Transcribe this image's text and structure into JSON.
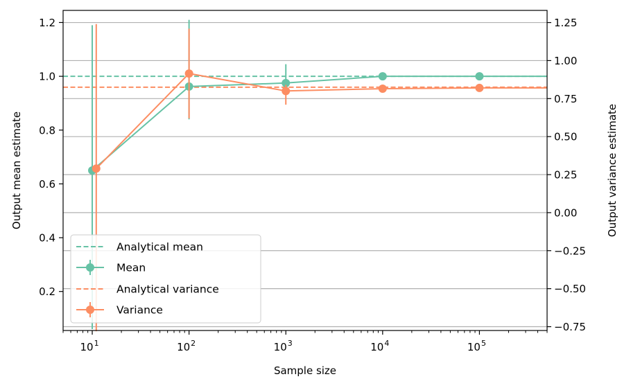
{
  "chart_data": {
    "type": "line",
    "xlabel": "Sample size",
    "ylabel_left": "Output mean estimate",
    "ylabel_right": "Output variance estimate",
    "x_scale": "log",
    "xlim": [
      5,
      500000
    ],
    "ylim_left": [
      0.055,
      1.245
    ],
    "ylim_right": [
      -0.775,
      1.33
    ],
    "x_ticks": [
      {
        "value": 10,
        "base": "10",
        "exp": "1"
      },
      {
        "value": 100,
        "base": "10",
        "exp": "2"
      },
      {
        "value": 1000,
        "base": "10",
        "exp": "3"
      },
      {
        "value": 10000,
        "base": "10",
        "exp": "4"
      },
      {
        "value": 100000,
        "base": "10",
        "exp": "5"
      }
    ],
    "y_ticks_left": [
      {
        "value": 0.2,
        "label": "0.2"
      },
      {
        "value": 0.4,
        "label": "0.4"
      },
      {
        "value": 0.6,
        "label": "0.6"
      },
      {
        "value": 0.8,
        "label": "0.8"
      },
      {
        "value": 1.0,
        "label": "1.0"
      },
      {
        "value": 1.2,
        "label": "1.2"
      }
    ],
    "y_ticks_right": [
      {
        "value": -0.75,
        "label": "−0.75"
      },
      {
        "value": -0.5,
        "label": "−0.50"
      },
      {
        "value": -0.25,
        "label": "−0.25"
      },
      {
        "value": 0.0,
        "label": "0.00"
      },
      {
        "value": 0.25,
        "label": "0.25"
      },
      {
        "value": 0.5,
        "label": "0.50"
      },
      {
        "value": 0.75,
        "label": "0.75"
      },
      {
        "value": 1.0,
        "label": "1.00"
      },
      {
        "value": 1.25,
        "label": "1.25"
      }
    ],
    "grid": "horizontal (right axis ticks)",
    "legend_position": "lower-left",
    "colors": {
      "mean": "#66c2a5",
      "variance": "#fc8d62"
    },
    "series": [
      {
        "name": "Mean",
        "axis": "left",
        "x": [
          10,
          100,
          1000,
          10000,
          100000,
          500000
        ],
        "y": [
          0.65,
          0.962,
          0.975,
          1.0,
          1.0,
          1.0
        ],
        "y_err_low": [
          0.06,
          0.84,
          0.98,
          null,
          null,
          null
        ],
        "y_err_high": [
          1.19,
          1.21,
          1.045,
          null,
          null,
          null
        ]
      },
      {
        "name": "Variance",
        "axis": "right",
        "x": [
          11,
          100,
          1000,
          10000,
          100000,
          500000
        ],
        "y": [
          0.29,
          0.915,
          0.8,
          0.815,
          0.82,
          0.82
        ],
        "y_err_low": [
          -0.78,
          0.62,
          0.71,
          null,
          null,
          null
        ],
        "y_err_high": [
          1.24,
          1.21,
          0.84,
          null,
          null,
          null
        ]
      },
      {
        "name": "Analytical mean",
        "axis": "left",
        "y": 1.0,
        "style": "dashed"
      },
      {
        "name": "Analytical variance",
        "axis": "right",
        "y": 0.825,
        "style": "dashed"
      }
    ],
    "legend": [
      "Analytical mean",
      "Mean",
      "Analytical variance",
      "Variance"
    ]
  }
}
